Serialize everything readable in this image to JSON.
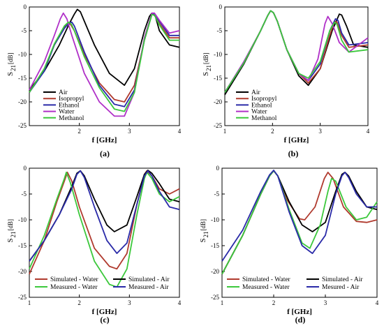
{
  "chart_data": [
    {
      "panel_label": "(a)",
      "type": "line",
      "xlabel": "f [GHz]",
      "ylabel_main": "S",
      "ylabel_sub": "21",
      "ylabel_unit": "[dB]",
      "xlim": [
        1,
        4
      ],
      "ylim": [
        -25,
        0
      ],
      "xticks": [
        "2",
        "3",
        "4"
      ],
      "yticks": [
        "0",
        "-5",
        "-10",
        "-15",
        "-20",
        "-25"
      ],
      "legend_position": "bottom-left",
      "series": [
        {
          "name": "Air",
          "color": "#000000",
          "x": [
            1.0,
            1.3,
            1.6,
            1.8,
            1.9,
            1.96,
            2.02,
            2.1,
            2.3,
            2.6,
            2.9,
            3.1,
            3.3,
            3.4,
            3.45,
            3.52,
            3.6,
            3.8,
            4.0
          ],
          "y": [
            -17.5,
            -13.5,
            -8.0,
            -3.5,
            -1.5,
            -0.5,
            -1.0,
            -3.0,
            -8.0,
            -14.0,
            -16.5,
            -13.0,
            -5.0,
            -2.0,
            -1.3,
            -2.0,
            -5.0,
            -8.0,
            -8.5
          ]
        },
        {
          "name": "Isopropyl",
          "color": "#b03a2e",
          "x": [
            1.0,
            1.3,
            1.5,
            1.7,
            1.78,
            1.82,
            1.9,
            2.1,
            2.4,
            2.7,
            2.9,
            3.1,
            3.3,
            3.45,
            3.5,
            3.6,
            3.8,
            4.0
          ],
          "y": [
            -18.0,
            -13.0,
            -8.0,
            -4.2,
            -3.3,
            -3.6,
            -5.0,
            -10.0,
            -16.0,
            -19.5,
            -20.0,
            -16.5,
            -7.0,
            -1.5,
            -1.6,
            -3.5,
            -6.5,
            -6.5
          ]
        },
        {
          "name": "Ethanol",
          "color": "#2a2aa8",
          "x": [
            1.0,
            1.3,
            1.5,
            1.7,
            1.8,
            1.85,
            1.9,
            2.1,
            2.4,
            2.7,
            2.9,
            3.1,
            3.3,
            3.45,
            3.5,
            3.6,
            3.8,
            4.0
          ],
          "y": [
            -18.0,
            -13.5,
            -8.0,
            -4.5,
            -3.3,
            -3.2,
            -4.0,
            -9.5,
            -16.5,
            -20.5,
            -21.0,
            -17.5,
            -7.0,
            -1.5,
            -1.5,
            -3.0,
            -6.0,
            -6.0
          ]
        },
        {
          "name": "Water",
          "color": "#b030c8",
          "x": [
            1.0,
            1.3,
            1.5,
            1.62,
            1.68,
            1.75,
            1.85,
            2.1,
            2.4,
            2.7,
            2.9,
            3.1,
            3.3,
            3.45,
            3.5,
            3.6,
            3.8,
            4.0
          ],
          "y": [
            -17.5,
            -11.5,
            -6.0,
            -2.5,
            -1.3,
            -2.5,
            -6.0,
            -14.0,
            -20.0,
            -23.0,
            -23.0,
            -18.0,
            -6.5,
            -1.3,
            -1.3,
            -2.8,
            -5.5,
            -5.0
          ]
        },
        {
          "name": "Methanol",
          "color": "#3cc83c",
          "x": [
            1.0,
            1.3,
            1.5,
            1.7,
            1.78,
            1.84,
            1.9,
            2.1,
            2.4,
            2.7,
            2.9,
            3.1,
            3.3,
            3.45,
            3.5,
            3.6,
            3.8,
            4.0
          ],
          "y": [
            -18.0,
            -13.0,
            -7.8,
            -4.0,
            -3.2,
            -3.6,
            -5.0,
            -10.5,
            -17.0,
            -21.5,
            -22.0,
            -18.0,
            -7.0,
            -1.6,
            -1.7,
            -3.8,
            -7.0,
            -7.0
          ]
        }
      ]
    },
    {
      "panel_label": "(b)",
      "type": "line",
      "xlabel": "f [GHz]",
      "ylabel_main": "S",
      "ylabel_sub": "21",
      "ylabel_unit": "[dB]",
      "xlim": [
        1,
        4
      ],
      "ylim": [
        -25,
        0
      ],
      "xticks": [
        "1",
        "2",
        "3",
        "4"
      ],
      "yticks": [
        "0",
        "-5",
        "-10",
        "-15",
        "-20",
        "-25"
      ],
      "legend_position": "bottom-left",
      "series": [
        {
          "name": "Air",
          "color": "#000000",
          "x": [
            1.0,
            1.4,
            1.75,
            1.9,
            1.96,
            2.02,
            2.1,
            2.3,
            2.55,
            2.75,
            3.0,
            3.25,
            3.4,
            3.45,
            3.55,
            3.7,
            4.0
          ],
          "y": [
            -18.5,
            -12.0,
            -5.0,
            -1.8,
            -0.8,
            -1.2,
            -3.0,
            -9.0,
            -14.5,
            -16.5,
            -13.0,
            -5.0,
            -1.5,
            -1.7,
            -4.0,
            -8.0,
            -8.5
          ]
        },
        {
          "name": "Isopropyl",
          "color": "#b03a2e",
          "x": [
            1.0,
            1.4,
            1.75,
            1.9,
            1.96,
            2.02,
            2.1,
            2.3,
            2.55,
            2.75,
            3.0,
            3.2,
            3.3,
            3.35,
            3.45,
            3.6,
            4.0
          ],
          "y": [
            -18.0,
            -11.8,
            -5.0,
            -1.8,
            -0.8,
            -1.2,
            -3.0,
            -9.0,
            -14.0,
            -16.0,
            -13.0,
            -6.0,
            -3.0,
            -3.2,
            -6.0,
            -8.5,
            -8.0
          ]
        },
        {
          "name": "Ethanol",
          "color": "#2a2aa8",
          "x": [
            1.0,
            1.4,
            1.75,
            1.9,
            1.96,
            2.02,
            2.1,
            2.3,
            2.55,
            2.75,
            3.0,
            3.2,
            3.32,
            3.37,
            3.45,
            3.6,
            4.0
          ],
          "y": [
            -18.0,
            -11.8,
            -5.0,
            -1.8,
            -0.8,
            -1.2,
            -3.0,
            -9.0,
            -14.0,
            -15.5,
            -12.0,
            -5.0,
            -2.5,
            -2.8,
            -5.5,
            -8.0,
            -7.5
          ]
        },
        {
          "name": "Water",
          "color": "#b030c8",
          "x": [
            1.0,
            1.4,
            1.75,
            1.9,
            1.96,
            2.02,
            2.1,
            2.3,
            2.55,
            2.75,
            2.95,
            3.1,
            3.16,
            3.25,
            3.4,
            3.6,
            4.0
          ],
          "y": [
            -18.0,
            -11.5,
            -5.0,
            -1.8,
            -0.8,
            -1.2,
            -3.0,
            -9.0,
            -14.0,
            -15.5,
            -11.0,
            -3.5,
            -2.0,
            -3.5,
            -7.5,
            -9.5,
            -6.5
          ]
        },
        {
          "name": "Methanol",
          "color": "#3cc83c",
          "x": [
            1.0,
            1.4,
            1.75,
            1.9,
            1.96,
            2.02,
            2.1,
            2.3,
            2.55,
            2.75,
            3.0,
            3.2,
            3.3,
            3.35,
            3.45,
            3.6,
            4.0
          ],
          "y": [
            -18.0,
            -11.8,
            -5.0,
            -1.8,
            -0.8,
            -1.2,
            -3.0,
            -9.0,
            -14.0,
            -15.0,
            -11.5,
            -5.0,
            -3.2,
            -3.6,
            -7.0,
            -9.5,
            -9.0
          ]
        }
      ]
    },
    {
      "panel_label": "(c)",
      "type": "line",
      "xlabel": "f [GHz]",
      "ylabel_main": "S",
      "ylabel_sub": "21",
      "ylabel_unit": "[dB]",
      "xlim": [
        1,
        4
      ],
      "ylim": [
        -25,
        0
      ],
      "xticks": [
        "1",
        "2",
        "3",
        "4"
      ],
      "yticks": [
        "0",
        "-5",
        "-10",
        "-15",
        "-20",
        "-25"
      ],
      "legend_position": "bottom",
      "series": [
        {
          "name": "Simulated - Water",
          "color": "#b03a2e",
          "x": [
            1.0,
            1.3,
            1.55,
            1.7,
            1.76,
            1.85,
            2.0,
            2.3,
            2.6,
            2.75,
            2.95,
            3.15,
            3.3,
            3.35,
            3.45,
            3.6,
            3.8,
            4.0
          ],
          "y": [
            -20.5,
            -14.0,
            -6.5,
            -2.5,
            -0.8,
            -2.5,
            -7.5,
            -15.5,
            -19.0,
            -19.5,
            -16.5,
            -7.0,
            -1.2,
            -0.5,
            -1.5,
            -4.0,
            -5.0,
            -4.0
          ]
        },
        {
          "name": "Simulated - Air",
          "color": "#000000",
          "x": [
            1.0,
            1.3,
            1.6,
            1.85,
            1.95,
            2.02,
            2.1,
            2.3,
            2.55,
            2.7,
            2.95,
            3.15,
            3.3,
            3.37,
            3.45,
            3.6,
            3.8,
            4.0
          ],
          "y": [
            -18.0,
            -14.0,
            -9.0,
            -3.5,
            -1.0,
            -0.5,
            -1.5,
            -6.0,
            -11.0,
            -12.3,
            -11.0,
            -5.5,
            -1.2,
            -0.4,
            -1.0,
            -3.0,
            -6.0,
            -6.5
          ]
        },
        {
          "name": "Measured - Water",
          "color": "#3cc83c",
          "x": [
            1.0,
            1.3,
            1.55,
            1.7,
            1.74,
            1.82,
            2.0,
            2.3,
            2.6,
            2.75,
            2.95,
            3.15,
            3.3,
            3.35,
            3.45,
            3.6,
            3.8,
            4.0
          ],
          "y": [
            -19.5,
            -13.0,
            -6.0,
            -2.0,
            -0.8,
            -2.8,
            -9.0,
            -18.0,
            -22.5,
            -23.0,
            -19.5,
            -9.0,
            -2.0,
            -0.8,
            -2.0,
            -5.0,
            -6.5,
            -5.5
          ]
        },
        {
          "name": "Measured - Air",
          "color": "#2a2aa8",
          "x": [
            1.0,
            1.3,
            1.6,
            1.85,
            1.95,
            2.02,
            2.1,
            2.3,
            2.55,
            2.75,
            2.95,
            3.15,
            3.3,
            3.37,
            3.45,
            3.6,
            3.8,
            4.0
          ],
          "y": [
            -18.0,
            -14.0,
            -9.0,
            -4.0,
            -1.2,
            -0.5,
            -1.8,
            -7.5,
            -14.0,
            -16.5,
            -14.5,
            -7.0,
            -1.5,
            -0.5,
            -1.5,
            -4.5,
            -7.5,
            -8.0
          ]
        }
      ]
    },
    {
      "panel_label": "(d)",
      "type": "line",
      "xlabel": "f [GHz]",
      "ylabel_main": "S",
      "ylabel_sub": "21",
      "ylabel_unit": "[dB]",
      "xlim": [
        1,
        4
      ],
      "ylim": [
        -25,
        0
      ],
      "xticks": [
        "1",
        "2",
        "3",
        "4"
      ],
      "yticks": [
        "0",
        "-5",
        "-10",
        "-15",
        "-20",
        "-25"
      ],
      "legend_position": "bottom",
      "series": [
        {
          "name": "Simulated - Water",
          "color": "#b03a2e",
          "x": [
            1.0,
            1.4,
            1.75,
            1.92,
            2.0,
            2.08,
            2.25,
            2.5,
            2.6,
            2.8,
            2.98,
            3.05,
            3.15,
            3.35,
            3.6,
            3.8,
            4.0
          ],
          "y": [
            -20.5,
            -13.0,
            -5.0,
            -1.5,
            -0.5,
            -1.5,
            -6.0,
            -9.8,
            -10.0,
            -7.5,
            -2.0,
            -0.8,
            -2.0,
            -7.5,
            -10.3,
            -10.5,
            -10.0
          ]
        },
        {
          "name": "Simulated - Air",
          "color": "#000000",
          "x": [
            1.0,
            1.4,
            1.75,
            1.92,
            2.0,
            2.08,
            2.3,
            2.55,
            2.75,
            3.0,
            3.2,
            3.32,
            3.38,
            3.45,
            3.6,
            3.8,
            4.0
          ],
          "y": [
            -20.5,
            -13.0,
            -5.0,
            -1.5,
            -0.5,
            -1.5,
            -6.5,
            -11.0,
            -12.3,
            -10.5,
            -4.5,
            -1.2,
            -0.8,
            -1.5,
            -4.5,
            -7.5,
            -8.0
          ]
        },
        {
          "name": "Measured - Water",
          "color": "#3cc83c",
          "x": [
            1.0,
            1.4,
            1.75,
            1.92,
            2.0,
            2.08,
            2.3,
            2.55,
            2.7,
            2.9,
            3.05,
            3.12,
            3.2,
            3.4,
            3.6,
            3.8,
            4.0
          ],
          "y": [
            -20.5,
            -13.0,
            -5.0,
            -1.5,
            -0.5,
            -1.5,
            -8.0,
            -14.5,
            -15.5,
            -11.0,
            -4.5,
            -2.0,
            -2.5,
            -7.5,
            -10.0,
            -9.5,
            -6.5
          ]
        },
        {
          "name": "Mesured - Air",
          "color": "#2a2aa8",
          "x": [
            1.0,
            1.4,
            1.75,
            1.92,
            2.0,
            2.08,
            2.3,
            2.55,
            2.75,
            3.0,
            3.2,
            3.32,
            3.38,
            3.45,
            3.6,
            3.8,
            4.0
          ],
          "y": [
            -18.0,
            -12.0,
            -4.5,
            -1.3,
            -0.4,
            -1.5,
            -8.5,
            -15.0,
            -16.5,
            -13.0,
            -5.0,
            -1.5,
            -0.8,
            -1.8,
            -5.0,
            -7.5,
            -7.5
          ]
        }
      ]
    }
  ]
}
